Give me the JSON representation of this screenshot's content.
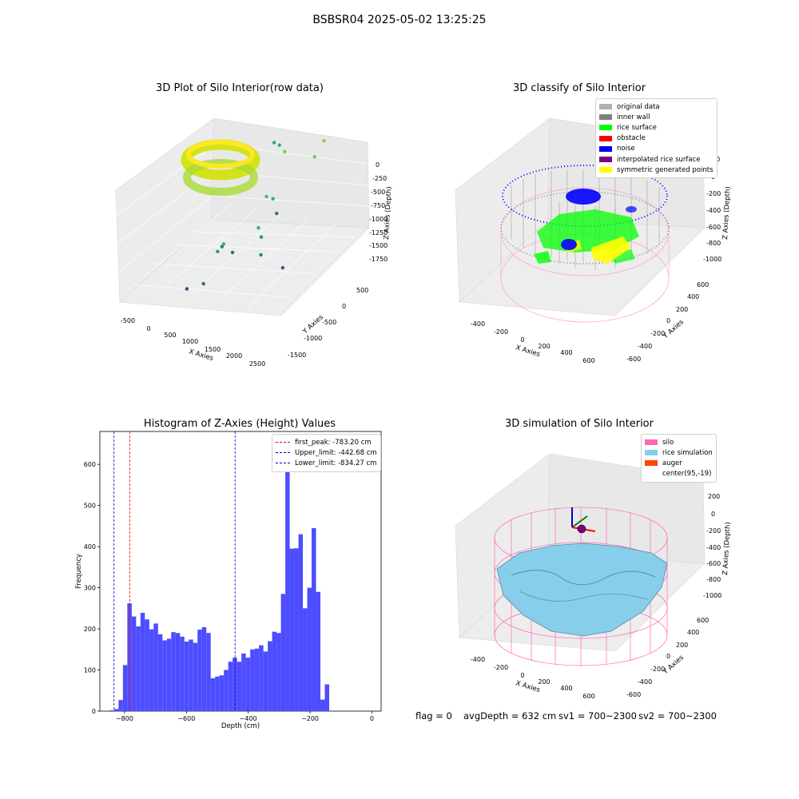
{
  "figure": {
    "suptitle": "BSBSR04 2025-05-02 13:25:25",
    "status": {
      "flag": "flag = 0",
      "avg_depth": "avgDepth = 632 cm",
      "sv1": "sv1 = 700~2300",
      "sv2": "sv2 = 700~2300"
    }
  },
  "colors": {
    "hist_bar": "#4d4dff",
    "peak_line": "#ff0000",
    "limit_line": "#0000cc",
    "silo": "#ff69b4",
    "rice": "#87ceeb",
    "auger": "#ff4500",
    "noise": "#0000ff",
    "rice_surface": "#00ff00",
    "inner_wall": "#808080",
    "symmetric": "#ffff00"
  },
  "chart_data": [
    {
      "type": "scatter",
      "title": "3D Plot of Silo Interior(row data)",
      "xlabel": "X Axies",
      "ylabel": "Y Axies",
      "zlabel": "Z Axies (Depth)",
      "x_ticks": [
        "-500",
        "0",
        "500",
        "1000",
        "1500",
        "2000",
        "2500"
      ],
      "y_ticks": [
        "500",
        "0",
        "-500",
        "-1000",
        "-1500"
      ],
      "z_ticks": [
        "0",
        "-250",
        "-500",
        "-750",
        "-1000",
        "-1250",
        "-1500",
        "-1750"
      ],
      "xlim": [
        -700,
        2700
      ],
      "ylim": [
        -1700,
        700
      ],
      "zlim": [
        -1900,
        0
      ],
      "outliers": [
        {
          "x": 500,
          "y": -1500,
          "z": -1750,
          "c": "#3e4a89"
        },
        {
          "x": 800,
          "y": -1400,
          "z": -1700,
          "c": "#2d6e8e"
        },
        {
          "x": 200,
          "y": -500,
          "z": -1700,
          "c": "#31688e"
        },
        {
          "x": -200,
          "y": -400,
          "z": -1650,
          "c": "#35b779"
        },
        {
          "x": -400,
          "y": -300,
          "z": -1750,
          "c": "#2a788e"
        },
        {
          "x": 100,
          "y": -700,
          "z": -1600,
          "c": "#1f9e89"
        },
        {
          "x": 1300,
          "y": -700,
          "z": -1300,
          "c": "#21918c"
        },
        {
          "x": 200,
          "y": 100,
          "z": -1150,
          "c": "#3dbc74"
        },
        {
          "x": 300,
          "y": 150,
          "z": -1200,
          "c": "#29af7f"
        },
        {
          "x": 600,
          "y": -300,
          "z": -1400,
          "c": "#2db27d"
        },
        {
          "x": 1600,
          "y": -900,
          "z": -1450,
          "c": "#26828e"
        },
        {
          "x": 2200,
          "y": -900,
          "z": -1600,
          "c": "#39568c"
        },
        {
          "x": 1100,
          "y": -300,
          "z": -1150,
          "c": "#2c728e"
        },
        {
          "x": 900,
          "y": 500,
          "z": -700,
          "c": "#5ec962"
        },
        {
          "x": 1000,
          "y": 600,
          "z": -500,
          "c": "#84d44b"
        },
        {
          "x": 700,
          "y": 100,
          "z": -450,
          "c": "#6ccd5a"
        },
        {
          "x": 100,
          "y": 300,
          "z": -450,
          "c": "#20a386"
        },
        {
          "x": 400,
          "y": 200,
          "z": -420,
          "c": "#28ae80"
        }
      ]
    },
    {
      "type": "scatter",
      "title": "3D classify of Silo Interior",
      "xlabel": "X Axies",
      "ylabel": "Y Axies",
      "zlabel": "Z Axies (Depth)",
      "x_ticks": [
        "-400",
        "-200",
        "0",
        "200",
        "400",
        "600"
      ],
      "y_ticks": [
        "600",
        "400",
        "200",
        "0",
        "-200",
        "-400",
        "-600"
      ],
      "z_ticks": [
        "200",
        "0",
        "-200",
        "-400",
        "-600",
        "-800",
        "-1000"
      ],
      "legend": [
        {
          "label": "original data",
          "color": "#b0b0b0"
        },
        {
          "label": "inner wall",
          "color": "#808080"
        },
        {
          "label": "rice surface",
          "color": "#00ff00"
        },
        {
          "label": "obstacle",
          "color": "#ff0000"
        },
        {
          "label": "noise",
          "color": "#0000ff"
        },
        {
          "label": "interpolated rice surface",
          "color": "#800080"
        },
        {
          "label": "symmetric generated points",
          "color": "#ffff00"
        }
      ]
    },
    {
      "type": "bar",
      "title": "Histogram of Z-Axies (Height) Values",
      "xlabel": "Depth (cm)",
      "ylabel": "Frequency",
      "xlim": [
        -880,
        30
      ],
      "ylim": [
        0,
        680
      ],
      "x_ticks": [
        -800,
        -600,
        -400,
        -200,
        0
      ],
      "y_ticks": [
        0,
        100,
        200,
        300,
        400,
        500,
        600
      ],
      "bin_start": -848,
      "bin_width": 14.2,
      "values": [
        2,
        5,
        27,
        112,
        262,
        230,
        206,
        239,
        223,
        199,
        213,
        187,
        172,
        176,
        192,
        190,
        181,
        169,
        174,
        166,
        198,
        204,
        190,
        80,
        84,
        87,
        100,
        120,
        130,
        120,
        140,
        130,
        150,
        152,
        160,
        145,
        170,
        193,
        190,
        285,
        640,
        395,
        396,
        430,
        250,
        300,
        445,
        290,
        28,
        65
      ],
      "lines": [
        {
          "label": "first_peak: -783.20 cm",
          "x": -783.2,
          "color": "#ff0000"
        },
        {
          "label": "Upper_limit: -442.68 cm",
          "x": -442.68,
          "color": "#0000cc"
        },
        {
          "label": "Lower_limit: -834.27 cm",
          "x": -834.27,
          "color": "#0000cc"
        }
      ]
    },
    {
      "type": "surface",
      "title": "3D simulation of Silo Interior",
      "xlabel": "X Axies",
      "ylabel": "Y Axies",
      "zlabel": "Z Axies (Depth)",
      "x_ticks": [
        "-400",
        "-200",
        "0",
        "200",
        "400",
        "600"
      ],
      "y_ticks": [
        "600",
        "400",
        "200",
        "0",
        "-200",
        "-400",
        "-600"
      ],
      "z_ticks": [
        "200",
        "0",
        "-200",
        "-400",
        "-600",
        "-800",
        "-1000"
      ],
      "legend": [
        {
          "label": "silo",
          "color": "#ff69b4"
        },
        {
          "label": "rice simulation",
          "color": "#87ceeb"
        },
        {
          "label": "auger",
          "color": "#ff4500"
        },
        {
          "label": "center(95,-19)",
          "color": "transparent"
        }
      ]
    }
  ]
}
